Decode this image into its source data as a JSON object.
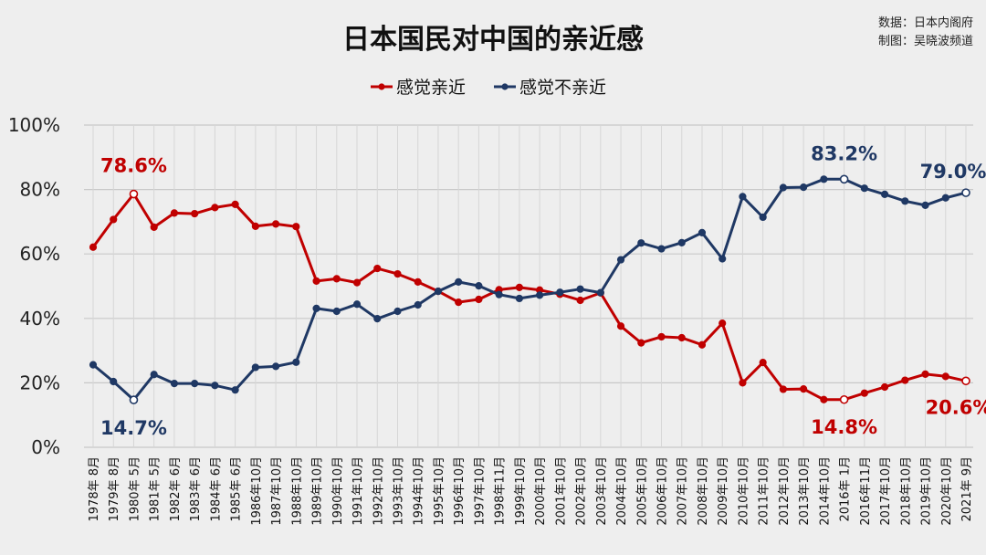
{
  "header": {
    "title": "日本国民对中国的亲近感",
    "source_line": "数据：日本内阁府",
    "maker_line": "制图：吴晓波频道"
  },
  "chart_data": {
    "type": "line",
    "title": "日本国民对中国的亲近感",
    "categories": [
      "1978年 8月",
      "1979年 8月",
      "1980年 5月",
      "1981年 5月",
      "1982年 6月",
      "1983年 6月",
      "1984年 6月",
      "1985年 6月",
      "1986年10月",
      "1987年10月",
      "1988年10月",
      "1989年10月",
      "1990年10月",
      "1991年10月",
      "1992年10月",
      "1993年10月",
      "1994年10月",
      "1995年10月",
      "1996年10月",
      "1997年10月",
      "1998年11月",
      "1999年10月",
      "2000年10月",
      "2001年10月",
      "2002年10月",
      "2003年10月",
      "2004年10月",
      "2005年10月",
      "2006年10月",
      "2007年10月",
      "2008年10月",
      "2009年10月",
      "2010年10月",
      "2011年10月",
      "2012年10月",
      "2013年10月",
      "2014年10月",
      "2016年 1月",
      "2016年11月",
      "2017年10月",
      "2018年10月",
      "2019年10月",
      "2020年10月",
      "2021年 9月"
    ],
    "series": [
      {
        "name": "感觉亲近",
        "color": "#c00000",
        "values": [
          62.1,
          70.7,
          78.6,
          68.3,
          72.7,
          72.5,
          74.4,
          75.4,
          68.6,
          69.3,
          68.5,
          51.6,
          52.3,
          51.1,
          55.5,
          53.8,
          51.3,
          48.4,
          45.0,
          45.9,
          48.9,
          49.6,
          48.8,
          47.5,
          45.6,
          47.9,
          37.6,
          32.4,
          34.3,
          34.0,
          31.8,
          38.5,
          20.0,
          26.3,
          18.0,
          18.1,
          14.8,
          14.8,
          16.8,
          18.7,
          20.8,
          22.7,
          22.0,
          20.6
        ]
      },
      {
        "name": "感觉不亲近",
        "color": "#1f3864",
        "values": [
          25.6,
          20.4,
          14.7,
          22.6,
          19.8,
          19.8,
          19.2,
          17.8,
          24.8,
          25.1,
          26.4,
          43.1,
          42.2,
          44.4,
          39.9,
          42.2,
          44.2,
          48.4,
          51.3,
          50.1,
          47.4,
          46.2,
          47.2,
          48.1,
          49.1,
          48.0,
          58.2,
          63.4,
          61.6,
          63.5,
          66.6,
          58.5,
          77.8,
          71.4,
          80.6,
          80.7,
          83.2,
          83.2,
          80.4,
          78.5,
          76.4,
          75.1,
          77.4,
          79.0
        ]
      }
    ],
    "y_ticks": [
      "0%",
      "20%",
      "40%",
      "60%",
      "80%",
      "100%"
    ],
    "ylim": [
      0,
      100
    ],
    "grid": true,
    "legend_position": "top-center",
    "annotations": [
      {
        "text": "78.6%",
        "series": 0,
        "index": 2,
        "color": "#c00000"
      },
      {
        "text": "14.7%",
        "series": 1,
        "index": 2,
        "color": "#1f3864"
      },
      {
        "text": "83.2%",
        "series": 1,
        "index": 37,
        "color": "#1f3864"
      },
      {
        "text": "79.0%",
        "series": 1,
        "index": 43,
        "color": "#1f3864"
      },
      {
        "text": "14.8%",
        "series": 0,
        "index": 37,
        "color": "#c00000"
      },
      {
        "text": "20.6%",
        "series": 0,
        "index": 43,
        "color": "#c00000"
      }
    ],
    "hollow_markers": [
      {
        "series": 0,
        "index": 2
      },
      {
        "series": 1,
        "index": 2
      },
      {
        "series": 0,
        "index": 37
      },
      {
        "series": 1,
        "index": 37
      },
      {
        "series": 0,
        "index": 43
      },
      {
        "series": 1,
        "index": 43
      }
    ]
  }
}
